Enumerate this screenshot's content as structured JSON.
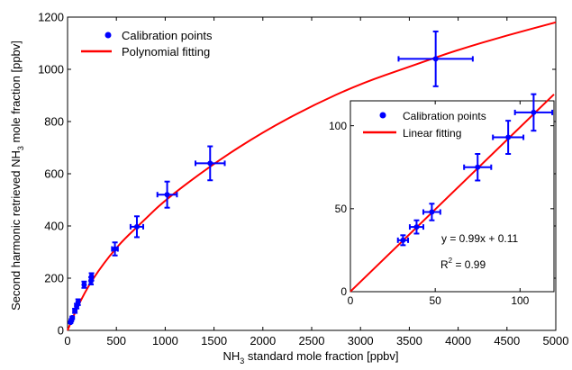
{
  "chart_data": [
    {
      "type": "scatter",
      "xlabel_main": "NH",
      "xlabel_sub": "3",
      "xlabel_rest": " standard mole fraction [ppbv]",
      "ylabel_pre": "Second harmonic retrieved NH",
      "ylabel_sub": "3",
      "ylabel_post": " mole fraction [ppbv]",
      "xlim": [
        0,
        5000
      ],
      "ylim": [
        0,
        1200
      ],
      "xticks": [
        0,
        500,
        1000,
        1500,
        2000,
        2500,
        3000,
        3500,
        4000,
        4500,
        5000
      ],
      "yticks": [
        0,
        200,
        400,
        600,
        800,
        1000,
        1200
      ],
      "legend_position": "top-left",
      "series": [
        {
          "name": "Calibration points",
          "color": "#0000ff",
          "points": [
            {
              "x": 31,
              "y": 31,
              "xerr": 3,
              "yerr": 3
            },
            {
              "x": 39,
              "y": 39,
              "xerr": 4,
              "yerr": 4
            },
            {
              "x": 48,
              "y": 48,
              "xerr": 5,
              "yerr": 5
            },
            {
              "x": 75,
              "y": 75,
              "xerr": 8,
              "yerr": 8
            },
            {
              "x": 93,
              "y": 93,
              "xerr": 9,
              "yerr": 9
            },
            {
              "x": 108,
              "y": 108,
              "xerr": 11,
              "yerr": 11
            },
            {
              "x": 170,
              "y": 175,
              "xerr": 10,
              "yerr": 12
            },
            {
              "x": 240,
              "y": 190,
              "xerr": 12,
              "yerr": 14
            },
            {
              "x": 245,
              "y": 205,
              "xerr": 12,
              "yerr": 14
            },
            {
              "x": 485,
              "y": 312,
              "xerr": 30,
              "yerr": 25
            },
            {
              "x": 710,
              "y": 397,
              "xerr": 65,
              "yerr": 40
            },
            {
              "x": 1020,
              "y": 520,
              "xerr": 100,
              "yerr": 50
            },
            {
              "x": 1460,
              "y": 640,
              "xerr": 150,
              "yerr": 65
            },
            {
              "x": 3770,
              "y": 1040,
              "xerr": 380,
              "yerr": 105
            }
          ]
        },
        {
          "name": "Polynomial fitting",
          "color": "#ff0000",
          "curve": [
            [
              0,
              0
            ],
            [
              100,
              90
            ],
            [
              250,
              195
            ],
            [
              500,
              320
            ],
            [
              750,
              410
            ],
            [
              1000,
              500
            ],
            [
              1500,
              640
            ],
            [
              2000,
              760
            ],
            [
              2500,
              860
            ],
            [
              3000,
              945
            ],
            [
              3500,
              1010
            ],
            [
              4000,
              1075
            ],
            [
              4500,
              1130
            ],
            [
              5000,
              1180
            ]
          ]
        }
      ]
    },
    {
      "type": "scatter",
      "xlim": [
        0,
        120
      ],
      "ylim": [
        0,
        115
      ],
      "xticks": [
        0,
        50,
        100
      ],
      "yticks": [
        0,
        50,
        100
      ],
      "legend_position": "top-left",
      "annotation_eq": "y = 0.99x + 0.11",
      "annotation_r2_base": "R",
      "annotation_r2_sup": "2",
      "annotation_r2_rest": " = 0.99",
      "series": [
        {
          "name": "Calibration points",
          "color": "#0000ff",
          "points": [
            {
              "x": 31,
              "y": 31,
              "xerr": 3,
              "yerr": 3
            },
            {
              "x": 39,
              "y": 39,
              "xerr": 4,
              "yerr": 4
            },
            {
              "x": 48,
              "y": 48,
              "xerr": 5,
              "yerr": 5
            },
            {
              "x": 75,
              "y": 75,
              "xerr": 8,
              "yerr": 8
            },
            {
              "x": 93,
              "y": 93,
              "xerr": 9,
              "yerr": 10
            },
            {
              "x": 108,
              "y": 108,
              "xerr": 11,
              "yerr": 11
            }
          ]
        },
        {
          "name": "Linear fitting",
          "color": "#ff0000",
          "slope": 0.99,
          "intercept": 0.11
        }
      ]
    }
  ]
}
